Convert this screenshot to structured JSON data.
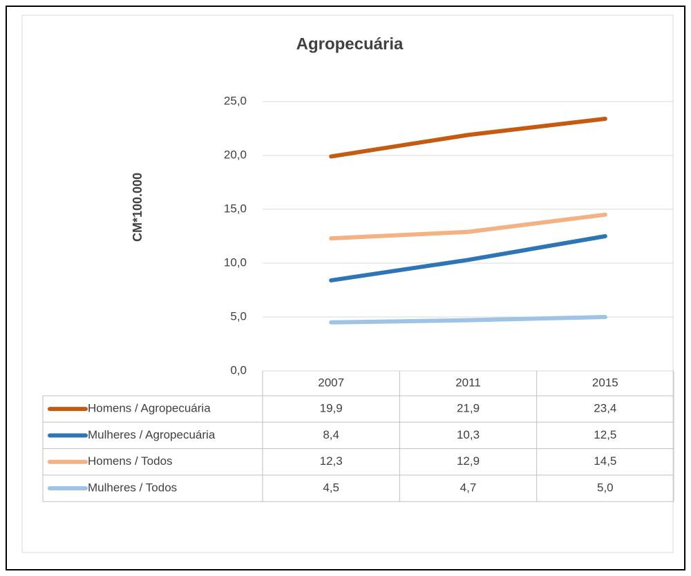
{
  "chart_data": {
    "type": "line",
    "title": "Agropecuária",
    "y_label": "CM*100.000",
    "categories": [
      "2007",
      "2011",
      "2015"
    ],
    "series": [
      {
        "name": "Homens / Agropecuária",
        "color": "#c55a11",
        "values": [
          19.9,
          21.9,
          23.4
        ],
        "value_labels": [
          "19,9",
          "21,9",
          "23,4"
        ]
      },
      {
        "name": "Mulheres / Agropecuária",
        "color": "#2e75b6",
        "values": [
          8.4,
          10.3,
          12.5
        ],
        "value_labels": [
          "8,4",
          "10,3",
          "12,5"
        ]
      },
      {
        "name": "Homens / Todos",
        "color": "#f4b183",
        "values": [
          12.3,
          12.9,
          14.5
        ],
        "value_labels": [
          "12,3",
          "12,9",
          "14,5"
        ]
      },
      {
        "name": "Mulheres / Todos",
        "color": "#9dc3e6",
        "values": [
          4.5,
          4.7,
          5.0
        ],
        "value_labels": [
          "4,5",
          "4,7",
          "5,0"
        ]
      }
    ],
    "ylim": [
      0,
      25
    ],
    "yticks": [
      {
        "value": 0,
        "label": "0,0"
      },
      {
        "value": 5,
        "label": "5,0"
      },
      {
        "value": 10,
        "label": "10,0"
      },
      {
        "value": 15,
        "label": "15,0"
      },
      {
        "value": 20,
        "label": "20,0"
      },
      {
        "value": 25,
        "label": "25,0"
      }
    ],
    "grid": true
  }
}
